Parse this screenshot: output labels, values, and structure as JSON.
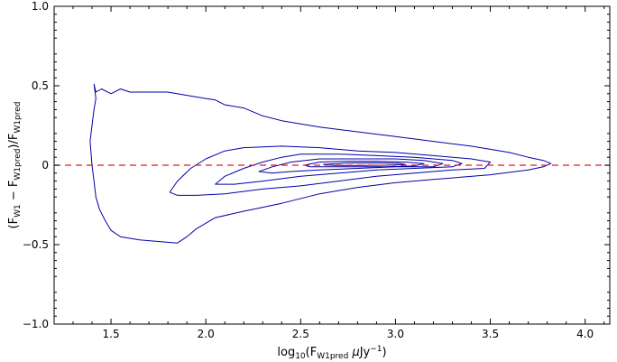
{
  "chart_data": {
    "type": "contour",
    "title": "",
    "xlabel": "log10(F_W1pred μJy^-1)",
    "ylabel": "(F_W1 − F_W1pred)/F_W1pred",
    "xlim": [
      1.2,
      4.13
    ],
    "ylim": [
      -1.0,
      1.0
    ],
    "x_ticks": [
      1.5,
      2.0,
      2.5,
      3.0,
      3.5,
      4.0
    ],
    "x_tick_labels": [
      "1.5",
      "2.0",
      "2.5",
      "3.0",
      "3.5",
      "4.0"
    ],
    "y_ticks": [
      -1.0,
      -0.5,
      0.0,
      0.5,
      1.0
    ],
    "y_tick_labels": [
      "−1.0",
      "−0.5",
      "0",
      "0.5",
      "1.0"
    ],
    "grid": false,
    "contour_color": "#0000aa",
    "reference_line": {
      "y": 0.0,
      "style": "dashed",
      "color": "#e41a1c"
    },
    "contours": [
      {
        "level": 1,
        "points": [
          [
            1.41,
            0.51
          ],
          [
            1.42,
            0.46
          ],
          [
            1.45,
            0.48
          ],
          [
            1.5,
            0.45
          ],
          [
            1.55,
            0.48
          ],
          [
            1.6,
            0.46
          ],
          [
            1.7,
            0.46
          ],
          [
            1.8,
            0.46
          ],
          [
            1.9,
            0.44
          ],
          [
            2.0,
            0.42
          ],
          [
            2.05,
            0.41
          ],
          [
            2.1,
            0.38
          ],
          [
            2.2,
            0.36
          ],
          [
            2.3,
            0.31
          ],
          [
            2.4,
            0.28
          ],
          [
            2.6,
            0.24
          ],
          [
            2.8,
            0.21
          ],
          [
            3.0,
            0.18
          ],
          [
            3.2,
            0.15
          ],
          [
            3.4,
            0.12
          ],
          [
            3.6,
            0.08
          ],
          [
            3.7,
            0.05
          ],
          [
            3.78,
            0.03
          ],
          [
            3.82,
            0.01
          ],
          [
            3.78,
            -0.01
          ],
          [
            3.7,
            -0.03
          ],
          [
            3.5,
            -0.06
          ],
          [
            3.2,
            -0.09
          ],
          [
            3.0,
            -0.11
          ],
          [
            2.8,
            -0.14
          ],
          [
            2.6,
            -0.18
          ],
          [
            2.4,
            -0.24
          ],
          [
            2.2,
            -0.29
          ],
          [
            2.05,
            -0.33
          ],
          [
            1.95,
            -0.4
          ],
          [
            1.9,
            -0.45
          ],
          [
            1.85,
            -0.49
          ],
          [
            1.75,
            -0.48
          ],
          [
            1.65,
            -0.47
          ],
          [
            1.55,
            -0.45
          ],
          [
            1.5,
            -0.41
          ],
          [
            1.47,
            -0.35
          ],
          [
            1.44,
            -0.28
          ],
          [
            1.42,
            -0.2
          ],
          [
            1.41,
            -0.1
          ],
          [
            1.4,
            0.0
          ],
          [
            1.39,
            0.15
          ],
          [
            1.4,
            0.25
          ],
          [
            1.41,
            0.35
          ],
          [
            1.42,
            0.42
          ],
          [
            1.41,
            0.51
          ]
        ]
      },
      {
        "level": 2,
        "points": [
          [
            1.81,
            -0.17
          ],
          [
            1.85,
            -0.1
          ],
          [
            1.92,
            -0.02
          ],
          [
            2.0,
            0.04
          ],
          [
            2.1,
            0.09
          ],
          [
            2.2,
            0.11
          ],
          [
            2.4,
            0.12
          ],
          [
            2.6,
            0.11
          ],
          [
            2.8,
            0.09
          ],
          [
            3.0,
            0.08
          ],
          [
            3.2,
            0.06
          ],
          [
            3.4,
            0.04
          ],
          [
            3.5,
            0.02
          ],
          [
            3.47,
            -0.02
          ],
          [
            3.3,
            -0.03
          ],
          [
            3.1,
            -0.05
          ],
          [
            2.9,
            -0.07
          ],
          [
            2.7,
            -0.1
          ],
          [
            2.5,
            -0.13
          ],
          [
            2.3,
            -0.15
          ],
          [
            2.1,
            -0.18
          ],
          [
            1.95,
            -0.19
          ],
          [
            1.85,
            -0.19
          ],
          [
            1.81,
            -0.17
          ]
        ]
      },
      {
        "level": 3,
        "points": [
          [
            2.05,
            -0.12
          ],
          [
            2.1,
            -0.07
          ],
          [
            2.2,
            -0.02
          ],
          [
            2.3,
            0.02
          ],
          [
            2.4,
            0.05
          ],
          [
            2.5,
            0.07
          ],
          [
            2.7,
            0.07
          ],
          [
            2.9,
            0.06
          ],
          [
            3.1,
            0.05
          ],
          [
            3.3,
            0.03
          ],
          [
            3.35,
            0.01
          ],
          [
            3.3,
            -0.01
          ],
          [
            3.1,
            -0.02
          ],
          [
            2.9,
            -0.03
          ],
          [
            2.7,
            -0.05
          ],
          [
            2.5,
            -0.07
          ],
          [
            2.3,
            -0.1
          ],
          [
            2.15,
            -0.12
          ],
          [
            2.05,
            -0.12
          ]
        ]
      },
      {
        "level": 4,
        "points": [
          [
            2.28,
            -0.04
          ],
          [
            2.35,
            -0.01
          ],
          [
            2.45,
            0.02
          ],
          [
            2.6,
            0.04
          ],
          [
            2.8,
            0.04
          ],
          [
            3.0,
            0.04
          ],
          [
            3.15,
            0.03
          ],
          [
            3.25,
            0.01
          ],
          [
            3.2,
            -0.01
          ],
          [
            3.0,
            -0.01
          ],
          [
            2.8,
            -0.02
          ],
          [
            2.6,
            -0.03
          ],
          [
            2.45,
            -0.04
          ],
          [
            2.35,
            -0.05
          ],
          [
            2.28,
            -0.04
          ]
        ]
      },
      {
        "level": 5,
        "points": [
          [
            2.52,
            0.0
          ],
          [
            2.6,
            0.02
          ],
          [
            2.75,
            0.025
          ],
          [
            2.9,
            0.025
          ],
          [
            3.05,
            0.02
          ],
          [
            3.15,
            0.01
          ],
          [
            3.1,
            -0.005
          ],
          [
            2.95,
            -0.01
          ],
          [
            2.8,
            -0.01
          ],
          [
            2.65,
            -0.01
          ],
          [
            2.55,
            -0.01
          ],
          [
            2.52,
            0.0
          ]
        ]
      },
      {
        "level": 6,
        "points": [
          [
            2.62,
            0.005
          ],
          [
            2.75,
            0.014
          ],
          [
            2.9,
            0.015
          ],
          [
            3.02,
            0.012
          ],
          [
            3.05,
            0.005
          ],
          [
            2.95,
            0.0
          ],
          [
            2.8,
            -0.002
          ],
          [
            2.68,
            -0.002
          ],
          [
            2.62,
            0.005
          ]
        ]
      }
    ]
  }
}
